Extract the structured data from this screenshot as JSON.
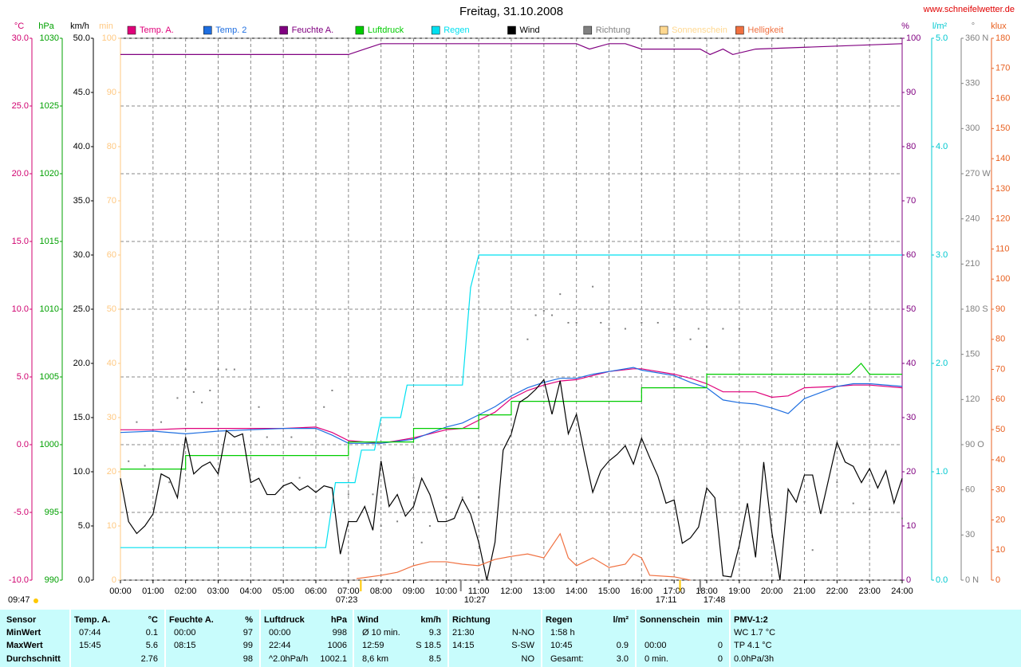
{
  "chart_data": {
    "type": "line",
    "title": "Freitag, 31.10.2008",
    "source": "www.schneifelwetter.de",
    "xlim": [
      0,
      24
    ],
    "xticks": [
      {
        "value": 0,
        "label": "00:00"
      },
      {
        "value": 1,
        "label": "01:00"
      },
      {
        "value": 2,
        "label": "02:00"
      },
      {
        "value": 3,
        "label": "03:00"
      },
      {
        "value": 4,
        "label": "04:00"
      },
      {
        "value": 5,
        "label": "05:00"
      },
      {
        "value": 6,
        "label": "06:00"
      },
      {
        "value": 7,
        "label": "07:00"
      },
      {
        "value": 8,
        "label": "08:00"
      },
      {
        "value": 9,
        "label": "09:00"
      },
      {
        "value": 10,
        "label": "10:00"
      },
      {
        "value": 11,
        "label": "11:00"
      },
      {
        "value": 12,
        "label": "12:00"
      },
      {
        "value": 13,
        "label": "13:00"
      },
      {
        "value": 14,
        "label": "14:00"
      },
      {
        "value": 15,
        "label": "15:00"
      },
      {
        "value": 16,
        "label": "16:00"
      },
      {
        "value": 17,
        "label": "17:00"
      },
      {
        "value": 18,
        "label": "18:00"
      },
      {
        "value": 19,
        "label": "19:00"
      },
      {
        "value": 20,
        "label": "20:00"
      },
      {
        "value": 21,
        "label": "21:00"
      },
      {
        "value": 22,
        "label": "22:00"
      },
      {
        "value": 23,
        "label": "23:00"
      },
      {
        "value": 24,
        "label": "24:00"
      }
    ],
    "grid": true,
    "axes": [
      {
        "unit": "°C",
        "color": "#d0006f",
        "lim": [
          -10,
          30
        ],
        "ticks": [
          {
            "value": -10,
            "label": "-10.0"
          },
          {
            "value": -5,
            "label": "-5.0"
          },
          {
            "value": 0,
            "label": "0.0"
          },
          {
            "value": 5,
            "label": "5.0"
          },
          {
            "value": 10,
            "label": "10.0"
          },
          {
            "value": 15,
            "label": "15.0"
          },
          {
            "value": 20,
            "label": "20.0"
          },
          {
            "value": 25,
            "label": "25.0"
          },
          {
            "value": 30,
            "label": "30.0"
          }
        ]
      },
      {
        "unit": "hPa",
        "color": "#00a000",
        "lim": [
          990,
          1030
        ],
        "ticks": [
          990,
          995,
          1000,
          1005,
          1010,
          1015,
          1020,
          1025,
          1030
        ]
      },
      {
        "unit": "km/h",
        "color": "#000000",
        "lim": [
          0,
          50
        ],
        "ticks": [
          {
            "value": 0,
            "label": "0.0"
          },
          {
            "value": 5,
            "label": "5.0"
          },
          {
            "value": 10,
            "label": "10.0"
          },
          {
            "value": 15,
            "label": "15.0"
          },
          {
            "value": 20,
            "label": "20.0"
          },
          {
            "value": 25,
            "label": "25.0"
          },
          {
            "value": 30,
            "label": "30.0"
          },
          {
            "value": 35,
            "label": "35.0"
          },
          {
            "value": 40,
            "label": "40.0"
          },
          {
            "value": 45,
            "label": "45.0"
          },
          {
            "value": 50,
            "label": "50.0"
          }
        ]
      },
      {
        "unit": "min",
        "color": "#ffc880",
        "lim": [
          0,
          100
        ],
        "ticks": [
          0,
          10,
          20,
          30,
          40,
          50,
          60,
          70,
          80,
          90,
          100
        ]
      },
      {
        "unit": "%",
        "color": "#800080",
        "lim": [
          0,
          100
        ],
        "ticks": [
          0,
          10,
          20,
          30,
          40,
          50,
          60,
          70,
          80,
          90,
          100
        ]
      },
      {
        "unit": "l/m²",
        "color": "#00c8d0",
        "lim": [
          0,
          5
        ],
        "ticks": [
          {
            "value": 0,
            "label": "0.0"
          },
          {
            "value": 1,
            "label": "1.0"
          },
          {
            "value": 2,
            "label": "2.0"
          },
          {
            "value": 3,
            "label": "3.0"
          },
          {
            "value": 4,
            "label": "4.0"
          },
          {
            "value": 5,
            "label": "5.0"
          }
        ]
      },
      {
        "unit": "°",
        "color": "#808080",
        "lim": [
          0,
          360
        ],
        "ticks": [
          {
            "value": 0,
            "label": "0 N"
          },
          30,
          60,
          {
            "value": 90,
            "label": "90 O"
          },
          120,
          150,
          {
            "value": 180,
            "label": "180 S"
          },
          210,
          240,
          {
            "value": 270,
            "label": "270 W"
          },
          300,
          330,
          {
            "value": 360,
            "label": "360 N"
          }
        ]
      },
      {
        "unit": "klux",
        "color": "#e86020",
        "lim": [
          0,
          180
        ],
        "ticks": [
          0,
          10,
          20,
          30,
          40,
          50,
          60,
          70,
          80,
          90,
          100,
          110,
          120,
          130,
          140,
          150,
          160,
          170,
          180
        ]
      }
    ],
    "series": [
      {
        "name": "Temp. A.",
        "color": "#e0007a",
        "axis": 0,
        "style": "line",
        "x": [
          0,
          1,
          2,
          3,
          4,
          5,
          6,
          6.5,
          7,
          8,
          9,
          10,
          10.5,
          11,
          11.5,
          12,
          12.5,
          13,
          13.5,
          14,
          14.5,
          15,
          15.75,
          16,
          17,
          17.5,
          18,
          18.5,
          19,
          19.5,
          20,
          20.5,
          21,
          22,
          22.5,
          23,
          24
        ],
        "values": [
          1.1,
          1.1,
          1.2,
          1.2,
          1.2,
          1.2,
          1.3,
          0.9,
          0.3,
          0.1,
          0.5,
          1.1,
          1.2,
          1.8,
          2.4,
          3.4,
          4.0,
          4.4,
          4.7,
          4.8,
          5.1,
          5.4,
          5.6,
          5.6,
          5.2,
          4.9,
          4.5,
          3.9,
          3.9,
          3.9,
          3.5,
          3.6,
          4.2,
          4.3,
          4.4,
          4.4,
          4.2
        ]
      },
      {
        "name": "Temp. 2",
        "color": "#1e6ee0",
        "axis": 0,
        "style": "line",
        "x": [
          0,
          1,
          2,
          3,
          4,
          5,
          6,
          6.5,
          7,
          8,
          9,
          10,
          10.5,
          11,
          11.5,
          12,
          12.5,
          13,
          13.5,
          14,
          14.5,
          15,
          15.75,
          16,
          17,
          17.5,
          18,
          18.5,
          19,
          19.5,
          20,
          20.5,
          21,
          22,
          22.5,
          23,
          24
        ],
        "values": [
          0.9,
          1.0,
          0.8,
          1.0,
          1.1,
          1.2,
          1.2,
          0.7,
          0.1,
          0.1,
          0.4,
          1.3,
          1.6,
          2.2,
          2.8,
          3.6,
          4.2,
          4.6,
          4.9,
          4.9,
          5.2,
          5.4,
          5.7,
          5.5,
          5.1,
          4.6,
          4.2,
          3.3,
          3.1,
          3.0,
          2.7,
          2.3,
          3.4,
          4.3,
          4.5,
          4.5,
          4.3
        ]
      },
      {
        "name": "Feuchte A.",
        "color": "#800080",
        "axis": 4,
        "style": "line",
        "x": [
          0,
          7,
          7.5,
          8,
          14,
          14.4,
          15,
          15.5,
          16,
          17.8,
          18.1,
          18.5,
          18.8,
          19.5,
          24
        ],
        "values": [
          97,
          97,
          98,
          99,
          99,
          98,
          99,
          99,
          98,
          98,
          97,
          98,
          97,
          98,
          99
        ]
      },
      {
        "name": "Luftdruck",
        "color": "#00cc00",
        "axis": 1,
        "style": "line",
        "x": [
          0,
          2,
          2,
          7,
          7,
          9,
          9,
          11,
          11,
          12,
          12,
          16,
          16,
          18,
          18,
          22.4,
          22.74,
          23,
          24
        ],
        "values": [
          998.2,
          998.2,
          999.2,
          999.2,
          1000.2,
          1000.2,
          1001.2,
          1001.2,
          1002.2,
          1002.2,
          1003.2,
          1003.2,
          1004.2,
          1004.2,
          1005.2,
          1005.2,
          1006,
          1005.2,
          1005.2
        ]
      },
      {
        "name": "Regen",
        "color": "#00e0f0",
        "axis": 5,
        "style": "line",
        "x": [
          0,
          6.3,
          6.6,
          7.2,
          7.4,
          7.8,
          8.0,
          8.6,
          8.8,
          10.5,
          10.75,
          11.0,
          24
        ],
        "values": [
          0.3,
          0.3,
          0.9,
          0.9,
          1.2,
          1.2,
          1.5,
          1.5,
          1.8,
          1.8,
          2.7,
          3.0,
          3.0
        ]
      },
      {
        "name": "Wind",
        "color": "#000000",
        "axis": 2,
        "style": "line",
        "x": [
          0,
          0.25,
          0.5,
          0.75,
          1,
          1.25,
          1.5,
          1.75,
          2,
          2.25,
          2.5,
          2.75,
          3,
          3.25,
          3.5,
          3.75,
          4,
          4.25,
          4.5,
          4.75,
          5,
          5.25,
          5.5,
          5.75,
          6,
          6.25,
          6.5,
          6.75,
          7,
          7.25,
          7.5,
          7.75,
          8,
          8.25,
          8.5,
          8.75,
          9,
          9.25,
          9.5,
          9.75,
          10,
          10.25,
          10.5,
          10.75,
          11,
          11.25,
          11.5,
          11.75,
          12,
          12.25,
          12.5,
          12.75,
          13,
          13.25,
          13.5,
          13.75,
          14,
          14.25,
          14.5,
          14.75,
          15,
          15.25,
          15.5,
          15.75,
          16,
          16.25,
          16.5,
          16.75,
          17,
          17.25,
          17.5,
          17.75,
          18,
          18.25,
          18.5,
          18.75,
          19,
          19.25,
          19.5,
          19.75,
          20,
          20.25,
          20.5,
          20.75,
          21,
          21.25,
          21.5,
          21.75,
          22,
          22.25,
          22.5,
          22.75,
          23,
          23.25,
          23.5,
          23.75,
          24
        ],
        "values": [
          9.4,
          5.4,
          4.3,
          5.0,
          6.1,
          9.8,
          9.4,
          7.6,
          13.2,
          9.8,
          10.5,
          10.9,
          9.8,
          13.8,
          13.2,
          13.5,
          9.0,
          9.4,
          7.9,
          7.9,
          8.7,
          9.0,
          8.3,
          8.7,
          8.1,
          8.7,
          8.5,
          2.4,
          5.4,
          5.4,
          6.8,
          4.6,
          11.0,
          6.8,
          7.9,
          5.9,
          6.8,
          9.4,
          7.9,
          5.4,
          5.4,
          5.7,
          7.5,
          6.1,
          3.5,
          0,
          3.5,
          12.0,
          13.5,
          16.4,
          16.9,
          17.6,
          18.5,
          15.3,
          18.4,
          13.5,
          15.3,
          11.6,
          8.1,
          10.1,
          11.0,
          11.6,
          12.4,
          10.7,
          13.1,
          11.3,
          9.6,
          7.1,
          7.4,
          3.4,
          3.9,
          4.9,
          8.5,
          7.6,
          0.4,
          0.3,
          3.2,
          7.1,
          2.1,
          10.9,
          4.4,
          0,
          8.4,
          7.2,
          9.7,
          9.7,
          6.1,
          9.4,
          12.7,
          10.9,
          10.5,
          9.0,
          10.3,
          8.5,
          10.1,
          7.1,
          9.4
        ]
      },
      {
        "name": "Richtung",
        "color": "#808080",
        "axis": 6,
        "style": "dots",
        "x": [
          0.25,
          0.5,
          0.75,
          1.25,
          1.5,
          1.75,
          2,
          2.25,
          2.5,
          2.75,
          3,
          3.25,
          3.5,
          4.25,
          4.5,
          5.25,
          5.5,
          6.25,
          6.5,
          7,
          7.75,
          8,
          8.5,
          9,
          9.25,
          9.5,
          10,
          10.5,
          11,
          12,
          12.5,
          12.75,
          13,
          13.25,
          13.5,
          13.75,
          14,
          14.5,
          14.75,
          15,
          15.5,
          16,
          16.5,
          17,
          17.5,
          17.75,
          18,
          18.5,
          19,
          21,
          21.25,
          22,
          22.5,
          23,
          24
        ],
        "values": [
          79,
          105,
          76,
          105,
          65,
          121,
          140,
          125,
          118,
          126,
          140,
          140,
          140,
          115,
          95,
          95,
          68,
          115,
          126,
          57,
          57,
          36,
          39,
          68,
          25,
          36,
          55,
          55,
          55,
          97,
          160,
          176,
          179,
          176,
          190,
          171,
          171,
          195,
          171,
          167,
          167,
          171,
          171,
          167,
          160,
          167,
          155,
          167,
          167,
          52,
          20,
          65,
          51,
          47,
          41
        ]
      },
      {
        "name": "Sonnenschein",
        "color": "#ffd890",
        "axis": 3,
        "style": "line"
      },
      {
        "name": "Helligkeit",
        "color": "#f07040",
        "axis": 7,
        "style": "line",
        "x": [
          7.25,
          8,
          8.5,
          9,
          9.5,
          10,
          10.5,
          11,
          11.5,
          12,
          12.5,
          13,
          13.5,
          13.75,
          14,
          14.5,
          15,
          15.5,
          15.75,
          16,
          16.25,
          17,
          17.5
        ],
        "values": [
          0.5,
          1.6,
          2.6,
          4.8,
          6.1,
          6.1,
          5.3,
          4.8,
          6.9,
          7.9,
          8.7,
          7.4,
          15.4,
          7.4,
          4.8,
          7.4,
          4.2,
          5.3,
          8.7,
          7.4,
          1.6,
          1.1,
          0
        ]
      }
    ],
    "day_length": "09:47",
    "markers": [
      {
        "value": 7.38,
        "label": "07:23",
        "color": "#ffc800"
      },
      {
        "value": 10.45,
        "label": "10:27",
        "color": "#808080"
      },
      {
        "value": 17.18,
        "label": "17:11",
        "color": "#ffc800"
      },
      {
        "value": 17.8,
        "label": "17:48",
        "color": "#808080"
      }
    ]
  },
  "table": {
    "sensor": {
      "title": "Sensor",
      "rows": [
        "MinWert",
        "MaxWert",
        "Durchschnitt"
      ]
    },
    "blocks": [
      {
        "title": "Temp. A.",
        "unit": "°C",
        "rows": [
          [
            "07:44",
            "0.1"
          ],
          [
            "15:45",
            "5.6"
          ],
          [
            null,
            "2.76"
          ]
        ]
      },
      {
        "title": "Feuchte A.",
        "unit": "%",
        "rows": [
          [
            "00:00",
            "97"
          ],
          [
            "08:15",
            "99"
          ],
          [
            null,
            "98"
          ]
        ]
      },
      {
        "title": "Luftdruck",
        "unit": "hPa",
        "rows": [
          [
            "00:00",
            "998"
          ],
          [
            "22:44",
            "1006"
          ],
          [
            "^2.0hPa/h",
            "1002.1"
          ]
        ]
      },
      {
        "title": "Wind",
        "unit": "km/h",
        "rows": [
          [
            "Ø 10 min.",
            "9.3"
          ],
          [
            "12:59",
            "S 18.5"
          ],
          [
            "8,6 km",
            "8.5"
          ]
        ]
      },
      {
        "title": "Richtung",
        "rows": [
          [
            "21:30",
            "N-NO"
          ],
          [
            "14:15",
            "S-SW"
          ],
          [
            null,
            "NO"
          ]
        ]
      },
      {
        "title": "Regen",
        "unit": "l/m²",
        "rows": [
          [
            "1:58 h",
            null
          ],
          [
            "10:45",
            "0.9"
          ],
          [
            "Gesamt:",
            "3.0"
          ]
        ]
      },
      {
        "title": "Sonnenschein",
        "unit": "min",
        "rows": [
          [
            null,
            null
          ],
          [
            "00:00",
            "0"
          ],
          [
            "0 min.",
            "0"
          ]
        ]
      },
      {
        "title": "PMV-1:2",
        "rows": [
          [
            "WC 1.7 °C"
          ],
          [
            "TP 4.1 °C"
          ],
          [
            "0.0hPa/3h"
          ]
        ]
      }
    ]
  }
}
